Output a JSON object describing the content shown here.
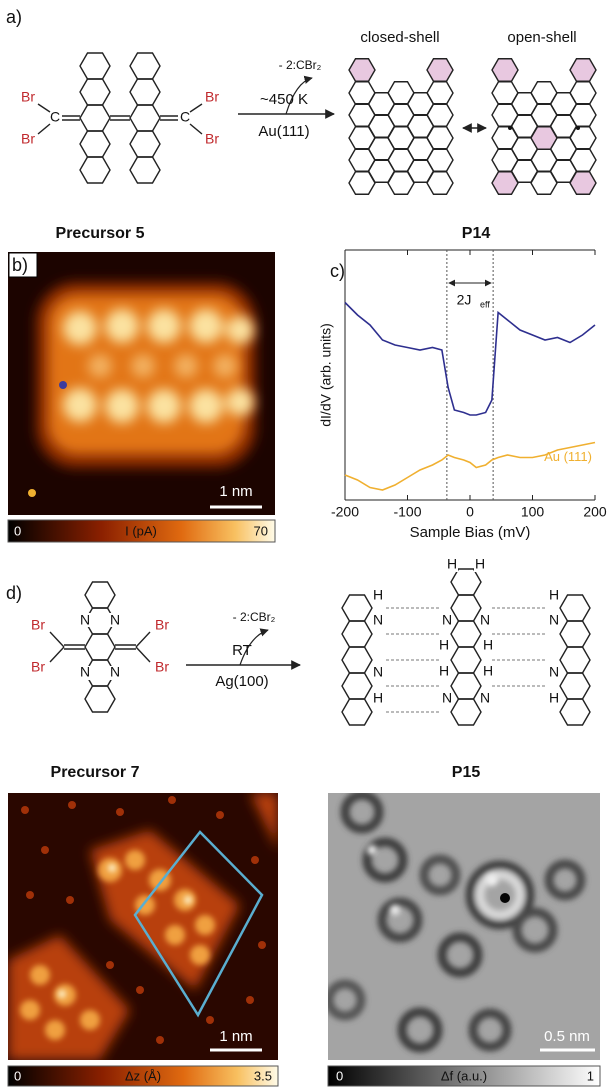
{
  "panel_labels": [
    "a)",
    "b)",
    "c)",
    "d)"
  ],
  "panel_a": {
    "precursor_atoms": [
      "Br",
      "C",
      "Br",
      "Br",
      "C",
      "Br"
    ],
    "condition_top": "- 2:CBr₂",
    "condition_temperature": "~450 K",
    "condition_surface": "Au(111)",
    "closed_shell_label": "closed-shell",
    "open_shell_label": "open-shell",
    "precursor_name": "Precursor 5",
    "product_name": "P14"
  },
  "panel_b": {
    "scale_bar": "1 nm",
    "colorbar_min": "0",
    "colorbar_label": "I (pA)",
    "colorbar_max": "70"
  },
  "chart_data": {
    "type": "line",
    "x_label": "Sample Bias (mV)",
    "y_label": "dI/dV (arb. units)",
    "gap_label": "2J",
    "gap_label_sub": "eff",
    "gap_lines": [
      -37,
      37
    ],
    "xlim": [
      -200,
      200
    ],
    "xticks": [
      -200,
      -100,
      0,
      100,
      200
    ],
    "ylim": [
      0,
      1
    ],
    "x": [
      -200,
      -180,
      -160,
      -140,
      -120,
      -100,
      -80,
      -60,
      -45,
      -35,
      -25,
      -10,
      0,
      10,
      25,
      35,
      45,
      60,
      80,
      100,
      120,
      140,
      160,
      180,
      200
    ],
    "series": [
      {
        "color": "#2e2f8f",
        "values": [
          0.79,
          0.74,
          0.7,
          0.64,
          0.62,
          0.61,
          0.6,
          0.61,
          0.6,
          0.45,
          0.36,
          0.35,
          0.34,
          0.34,
          0.35,
          0.4,
          0.75,
          0.72,
          0.68,
          0.66,
          0.64,
          0.65,
          0.63,
          0.66,
          0.7
        ]
      },
      {
        "name": "Au (111)",
        "color": "#f0b030",
        "values": [
          0.1,
          0.08,
          0.05,
          0.04,
          0.06,
          0.09,
          0.12,
          0.14,
          0.16,
          0.18,
          0.17,
          0.16,
          0.15,
          0.13,
          0.14,
          0.16,
          0.17,
          0.18,
          0.17,
          0.17,
          0.18,
          0.2,
          0.21,
          0.22,
          0.23
        ]
      }
    ]
  },
  "panel_d": {
    "precursor_atoms": [
      "Br",
      "Br",
      "N",
      "N",
      "N",
      "N",
      "Br",
      "Br"
    ],
    "condition_top": "- 2:CBr₂",
    "condition_temperature": "RT",
    "condition_surface": "Ag(100)",
    "product_atoms": [
      "H",
      "N",
      "N",
      "H",
      "N",
      "H",
      "H",
      "N",
      "H",
      "H",
      "N",
      "H",
      "H",
      "N",
      "H",
      "N",
      "N",
      "H"
    ],
    "precursor_name": "Precursor 7",
    "product_name": "P15"
  },
  "panel_e": {
    "scale_bar": "1 nm",
    "colorbar_min": "0",
    "colorbar_label": "Δz (Å)",
    "colorbar_max": "3.5"
  },
  "panel_f": {
    "scale_bar": "0.5 nm",
    "colorbar_min": "0",
    "colorbar_label": "Δf (a.u.)",
    "colorbar_max": "1"
  }
}
